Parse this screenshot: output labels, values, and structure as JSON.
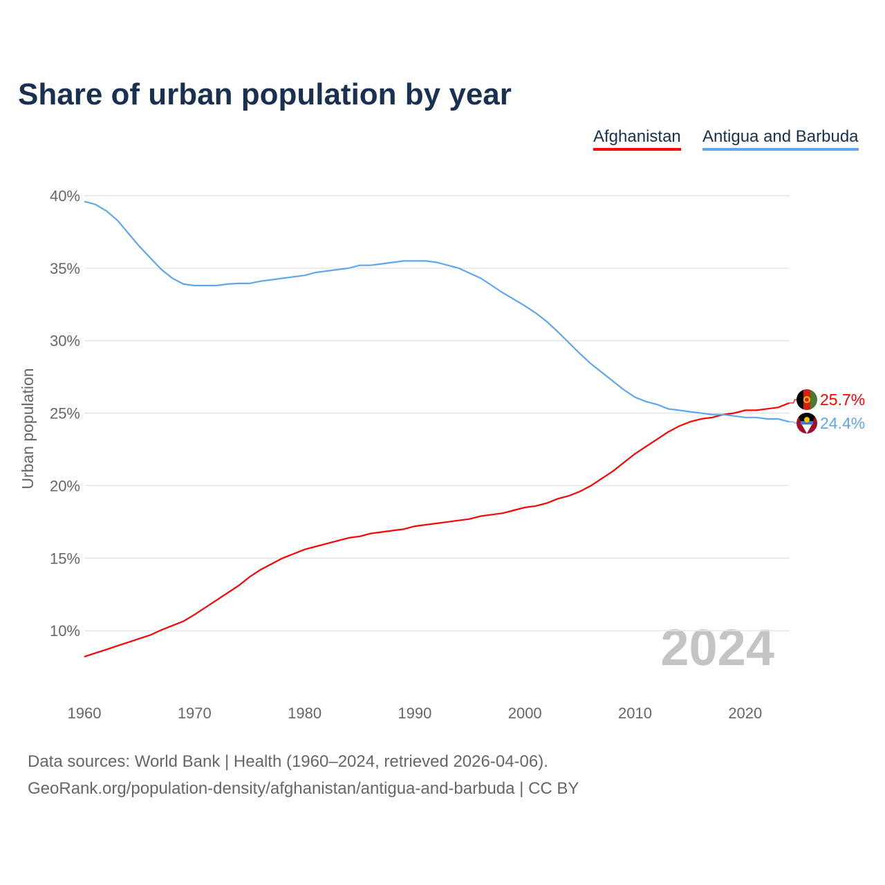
{
  "chart_data": {
    "type": "line",
    "title": "Share of urban population by year",
    "xlabel": "",
    "ylabel": "Urban population",
    "xlim": [
      1960,
      2024
    ],
    "ylim": [
      5,
      40
    ],
    "x_ticks": [
      "1960",
      "1970",
      "1980",
      "1990",
      "2000",
      "2010",
      "2020"
    ],
    "y_ticks": [
      "10%",
      "15%",
      "20%",
      "25%",
      "30%",
      "35%",
      "40%"
    ],
    "y_tick_values": [
      10,
      15,
      20,
      25,
      30,
      35,
      40
    ],
    "x_tick_values": [
      1960,
      1970,
      1980,
      1990,
      2000,
      2010,
      2020
    ],
    "grid": true,
    "legend_position": "top-right",
    "year_watermark": "2024",
    "x": [
      1960,
      1961,
      1962,
      1963,
      1964,
      1965,
      1966,
      1967,
      1968,
      1969,
      1970,
      1971,
      1972,
      1973,
      1974,
      1975,
      1976,
      1977,
      1978,
      1979,
      1980,
      1981,
      1982,
      1983,
      1984,
      1985,
      1986,
      1987,
      1988,
      1989,
      1990,
      1991,
      1992,
      1993,
      1994,
      1995,
      1996,
      1997,
      1998,
      1999,
      2000,
      2001,
      2002,
      2003,
      2004,
      2005,
      2006,
      2007,
      2008,
      2009,
      2010,
      2011,
      2012,
      2013,
      2014,
      2015,
      2016,
      2017,
      2018,
      2019,
      2020,
      2021,
      2022,
      2023,
      2024
    ],
    "series": [
      {
        "name": "Afghanistan",
        "color": "#ff0000",
        "end_label": "25.7%",
        "values": [
          8.2,
          8.45,
          8.7,
          8.95,
          9.2,
          9.45,
          9.7,
          10.05,
          10.35,
          10.65,
          11.1,
          11.6,
          12.1,
          12.6,
          13.1,
          13.7,
          14.2,
          14.6,
          15.0,
          15.3,
          15.6,
          15.8,
          16.0,
          16.2,
          16.4,
          16.5,
          16.7,
          16.8,
          16.9,
          17.0,
          17.2,
          17.3,
          17.4,
          17.5,
          17.6,
          17.7,
          17.9,
          18.0,
          18.1,
          18.3,
          18.5,
          18.6,
          18.8,
          19.1,
          19.3,
          19.6,
          20.0,
          20.5,
          21.0,
          21.6,
          22.2,
          22.7,
          23.2,
          23.7,
          24.1,
          24.4,
          24.6,
          24.7,
          24.9,
          25.0,
          25.2,
          25.2,
          25.3,
          25.4,
          25.7
        ]
      },
      {
        "name": "Antigua and Barbuda",
        "color": "#5ea7ee",
        "end_label": "24.4%",
        "values": [
          39.6,
          39.4,
          38.95,
          38.3,
          37.4,
          36.5,
          35.7,
          34.9,
          34.3,
          33.9,
          33.8,
          33.8,
          33.8,
          33.9,
          33.95,
          33.95,
          34.1,
          34.2,
          34.3,
          34.4,
          34.5,
          34.7,
          34.8,
          34.9,
          35.0,
          35.2,
          35.2,
          35.3,
          35.4,
          35.5,
          35.5,
          35.5,
          35.4,
          35.2,
          35.0,
          34.65,
          34.3,
          33.8,
          33.3,
          32.85,
          32.4,
          31.9,
          31.3,
          30.6,
          29.85,
          29.1,
          28.4,
          27.8,
          27.2,
          26.6,
          26.1,
          25.8,
          25.6,
          25.3,
          25.2,
          25.1,
          25.0,
          24.9,
          24.9,
          24.8,
          24.7,
          24.7,
          24.6,
          24.6,
          24.4
        ]
      }
    ]
  },
  "footer": {
    "line1": "Data sources: World Bank | Health (1960–2024, retrieved 2026-04-06).",
    "line2": "GeoRank.org/population-density/afghanistan/antigua-and-barbuda | CC BY"
  }
}
